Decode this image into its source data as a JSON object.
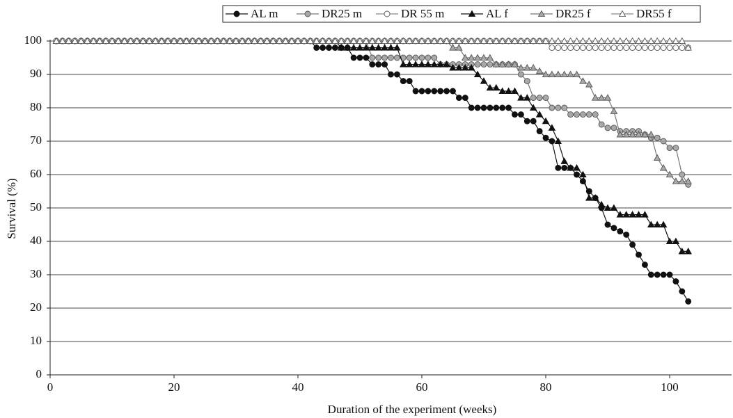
{
  "chart_data": {
    "type": "line",
    "xlabel": "Duration of the experiment (weeks)",
    "ylabel": "Survival (%)",
    "xlim": [
      0,
      110
    ],
    "xticks": [
      0,
      20,
      40,
      60,
      80,
      100
    ],
    "ylim": [
      0,
      100
    ],
    "yticks": [
      0,
      10,
      20,
      30,
      40,
      50,
      60,
      70,
      80,
      90,
      100
    ],
    "grid": true,
    "legend": "top-right",
    "x": [
      1,
      2,
      3,
      4,
      5,
      6,
      7,
      8,
      9,
      10,
      11,
      12,
      13,
      14,
      15,
      16,
      17,
      18,
      19,
      20,
      21,
      22,
      23,
      24,
      25,
      26,
      27,
      28,
      29,
      30,
      31,
      32,
      33,
      34,
      35,
      36,
      37,
      38,
      39,
      40,
      41,
      42,
      43,
      44,
      45,
      46,
      47,
      48,
      49,
      50,
      51,
      52,
      53,
      54,
      55,
      56,
      57,
      58,
      59,
      60,
      61,
      62,
      63,
      64,
      65,
      66,
      67,
      68,
      69,
      70,
      71,
      72,
      73,
      74,
      75,
      76,
      77,
      78,
      79,
      80,
      81,
      82,
      83,
      84,
      85,
      86,
      87,
      88,
      89,
      90,
      91,
      92,
      93,
      94,
      95,
      96,
      97,
      98,
      99,
      100,
      101,
      102,
      103
    ],
    "series": [
      {
        "name": "AL m",
        "color": "#111111",
        "line_color": "#111111",
        "marker": "circle",
        "values": [
          100,
          100,
          100,
          100,
          100,
          100,
          100,
          100,
          100,
          100,
          100,
          100,
          100,
          100,
          100,
          100,
          100,
          100,
          100,
          100,
          100,
          100,
          100,
          100,
          100,
          100,
          100,
          100,
          100,
          100,
          100,
          100,
          100,
          100,
          100,
          100,
          100,
          100,
          100,
          100,
          100,
          100,
          98,
          98,
          98,
          98,
          98,
          98,
          95,
          95,
          95,
          93,
          93,
          93,
          90,
          90,
          88,
          88,
          85,
          85,
          85,
          85,
          85,
          85,
          85,
          83,
          83,
          80,
          80,
          80,
          80,
          80,
          80,
          80,
          78,
          78,
          76,
          76,
          73,
          71,
          70,
          62,
          62,
          62,
          60,
          58,
          55,
          53,
          50,
          45,
          44,
          43,
          42,
          39,
          36,
          33,
          30,
          30,
          30,
          30,
          28,
          25,
          22
        ]
      },
      {
        "name": "DR25 m",
        "color": "#a8a8a8",
        "line_color": "#777777",
        "marker": "circle",
        "values": [
          100,
          100,
          100,
          100,
          100,
          100,
          100,
          100,
          100,
          100,
          100,
          100,
          100,
          100,
          100,
          100,
          100,
          100,
          100,
          100,
          100,
          100,
          100,
          100,
          100,
          100,
          100,
          100,
          100,
          100,
          100,
          100,
          100,
          100,
          100,
          100,
          100,
          100,
          100,
          100,
          100,
          100,
          100,
          100,
          100,
          100,
          100,
          100,
          100,
          100,
          100,
          95,
          95,
          95,
          95,
          95,
          95,
          95,
          95,
          95,
          95,
          95,
          93,
          93,
          93,
          93,
          93,
          93,
          93,
          93,
          93,
          93,
          93,
          93,
          93,
          90,
          88,
          83,
          83,
          83,
          80,
          80,
          80,
          78,
          78,
          78,
          78,
          78,
          75,
          74,
          74,
          73,
          73,
          73,
          73,
          72,
          71,
          71,
          70,
          68,
          68,
          60,
          57
        ]
      },
      {
        "name": "DR 55 m",
        "color": "#ffffff",
        "line_color": "#888888",
        "marker": "circle",
        "values": [
          100,
          100,
          100,
          100,
          100,
          100,
          100,
          100,
          100,
          100,
          100,
          100,
          100,
          100,
          100,
          100,
          100,
          100,
          100,
          100,
          100,
          100,
          100,
          100,
          100,
          100,
          100,
          100,
          100,
          100,
          100,
          100,
          100,
          100,
          100,
          100,
          100,
          100,
          100,
          100,
          100,
          100,
          100,
          100,
          100,
          100,
          100,
          100,
          100,
          100,
          100,
          100,
          100,
          100,
          100,
          100,
          100,
          100,
          100,
          100,
          100,
          100,
          100,
          100,
          100,
          100,
          100,
          100,
          100,
          100,
          100,
          100,
          100,
          100,
          100,
          100,
          100,
          100,
          100,
          100,
          98,
          98,
          98,
          98,
          98,
          98,
          98,
          98,
          98,
          98,
          98,
          98,
          98,
          98,
          98,
          98,
          98,
          98,
          98,
          98,
          98,
          98,
          98
        ]
      },
      {
        "name": "AL f",
        "color": "#111111",
        "line_color": "#111111",
        "marker": "triangle",
        "values": [
          100,
          100,
          100,
          100,
          100,
          100,
          100,
          100,
          100,
          100,
          100,
          100,
          100,
          100,
          100,
          100,
          100,
          100,
          100,
          100,
          100,
          100,
          100,
          100,
          100,
          100,
          100,
          100,
          100,
          100,
          100,
          100,
          100,
          100,
          100,
          100,
          100,
          100,
          100,
          100,
          100,
          100,
          100,
          100,
          100,
          100,
          98,
          98,
          98,
          98,
          98,
          98,
          98,
          98,
          98,
          98,
          93,
          93,
          93,
          93,
          93,
          93,
          93,
          93,
          92,
          92,
          92,
          92,
          90,
          88,
          86,
          86,
          85,
          85,
          85,
          83,
          83,
          80,
          78,
          76,
          74,
          70,
          64,
          62,
          62,
          60,
          53,
          53,
          51,
          50,
          50,
          48,
          48,
          48,
          48,
          48,
          45,
          45,
          45,
          40,
          40,
          37,
          37
        ]
      },
      {
        "name": "DR25 f",
        "color": "#a8a8a8",
        "line_color": "#777777",
        "marker": "triangle",
        "values": [
          100,
          100,
          100,
          100,
          100,
          100,
          100,
          100,
          100,
          100,
          100,
          100,
          100,
          100,
          100,
          100,
          100,
          100,
          100,
          100,
          100,
          100,
          100,
          100,
          100,
          100,
          100,
          100,
          100,
          100,
          100,
          100,
          100,
          100,
          100,
          100,
          100,
          100,
          100,
          100,
          100,
          100,
          100,
          100,
          100,
          100,
          100,
          100,
          100,
          100,
          100,
          100,
          100,
          100,
          100,
          100,
          100,
          100,
          100,
          100,
          100,
          100,
          100,
          100,
          98,
          98,
          95,
          95,
          95,
          95,
          95,
          93,
          93,
          93,
          93,
          92,
          92,
          92,
          91,
          90,
          90,
          90,
          90,
          90,
          90,
          88,
          87,
          83,
          83,
          83,
          79,
          72,
          72,
          72,
          72,
          72,
          72,
          65,
          62,
          60,
          58,
          58,
          58
        ]
      },
      {
        "name": "DR55 f",
        "color": "#ffffff",
        "line_color": "#888888",
        "marker": "triangle",
        "values": [
          100,
          100,
          100,
          100,
          100,
          100,
          100,
          100,
          100,
          100,
          100,
          100,
          100,
          100,
          100,
          100,
          100,
          100,
          100,
          100,
          100,
          100,
          100,
          100,
          100,
          100,
          100,
          100,
          100,
          100,
          100,
          100,
          100,
          100,
          100,
          100,
          100,
          100,
          100,
          100,
          100,
          100,
          100,
          100,
          100,
          100,
          100,
          100,
          100,
          100,
          100,
          100,
          100,
          100,
          100,
          100,
          100,
          100,
          100,
          100,
          100,
          100,
          100,
          100,
          100,
          100,
          100,
          100,
          100,
          100,
          100,
          100,
          100,
          100,
          100,
          100,
          100,
          100,
          100,
          100,
          100,
          100,
          100,
          100,
          100,
          100,
          100,
          100,
          100,
          100,
          100,
          100,
          100,
          100,
          100,
          100,
          100,
          100,
          100,
          100,
          100,
          100,
          98
        ]
      }
    ]
  }
}
